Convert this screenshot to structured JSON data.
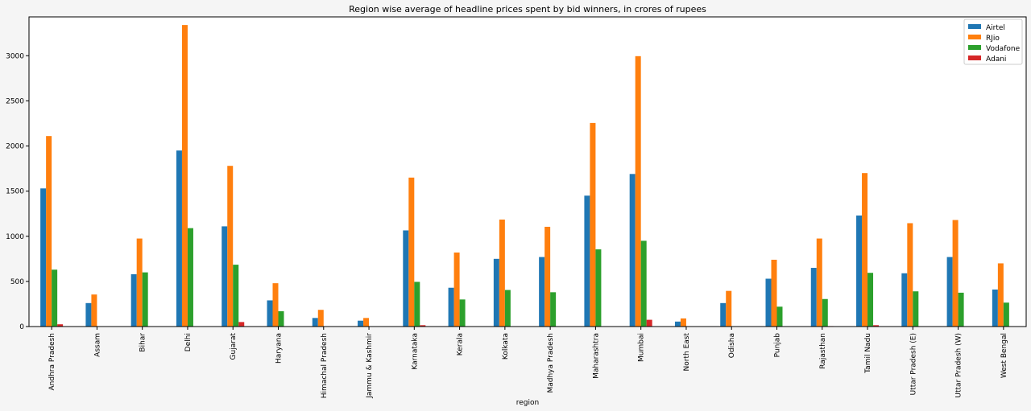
{
  "chart_data": {
    "type": "bar",
    "title": "Region wise average of headline prices spent by bid winners, in crores of rupees",
    "xlabel": "region",
    "ylabel": "",
    "ylim": [
      0,
      3430
    ],
    "yticks": [
      0,
      500,
      1000,
      1500,
      2000,
      2500,
      3000
    ],
    "grid": false,
    "legend_position": "top-right",
    "categories": [
      "Andhra Pradesh",
      "Assam",
      "Bihar",
      "Delhi",
      "Gujarat",
      "Haryana",
      "Himachal Pradesh",
      "Jammu & Kashmir",
      "Karnataka",
      "Kerala",
      "Kolkata",
      "Madhya Pradesh",
      "Maharashtra",
      "Mumbai",
      "North East",
      "Odisha",
      "Punjab",
      "Rajasthan",
      "Tamil Nadu",
      "Uttar Pradesh (E)",
      "Uttar Pradesh (W)",
      "West Bengal"
    ],
    "series": [
      {
        "name": "Airtel",
        "color": "#1f77b4",
        "values": [
          1530,
          260,
          580,
          1950,
          1110,
          290,
          95,
          65,
          1065,
          430,
          750,
          770,
          1450,
          1690,
          55,
          260,
          530,
          650,
          1230,
          590,
          770,
          410
        ]
      },
      {
        "name": "RJio",
        "color": "#ff7f0e",
        "values": [
          2110,
          355,
          975,
          3340,
          1780,
          480,
          185,
          95,
          1650,
          820,
          1185,
          1105,
          2255,
          2995,
          90,
          395,
          740,
          975,
          1700,
          1145,
          1180,
          700
        ]
      },
      {
        "name": "Vodafone",
        "color": "#2ca02c",
        "values": [
          630,
          0,
          600,
          1090,
          685,
          170,
          0,
          0,
          495,
          300,
          405,
          380,
          855,
          950,
          0,
          0,
          220,
          305,
          595,
          390,
          375,
          265
        ]
      },
      {
        "name": "Adani",
        "color": "#d62728",
        "values": [
          25,
          0,
          0,
          0,
          50,
          0,
          0,
          0,
          15,
          0,
          0,
          0,
          0,
          75,
          0,
          0,
          0,
          5,
          15,
          0,
          0,
          0
        ]
      }
    ]
  }
}
